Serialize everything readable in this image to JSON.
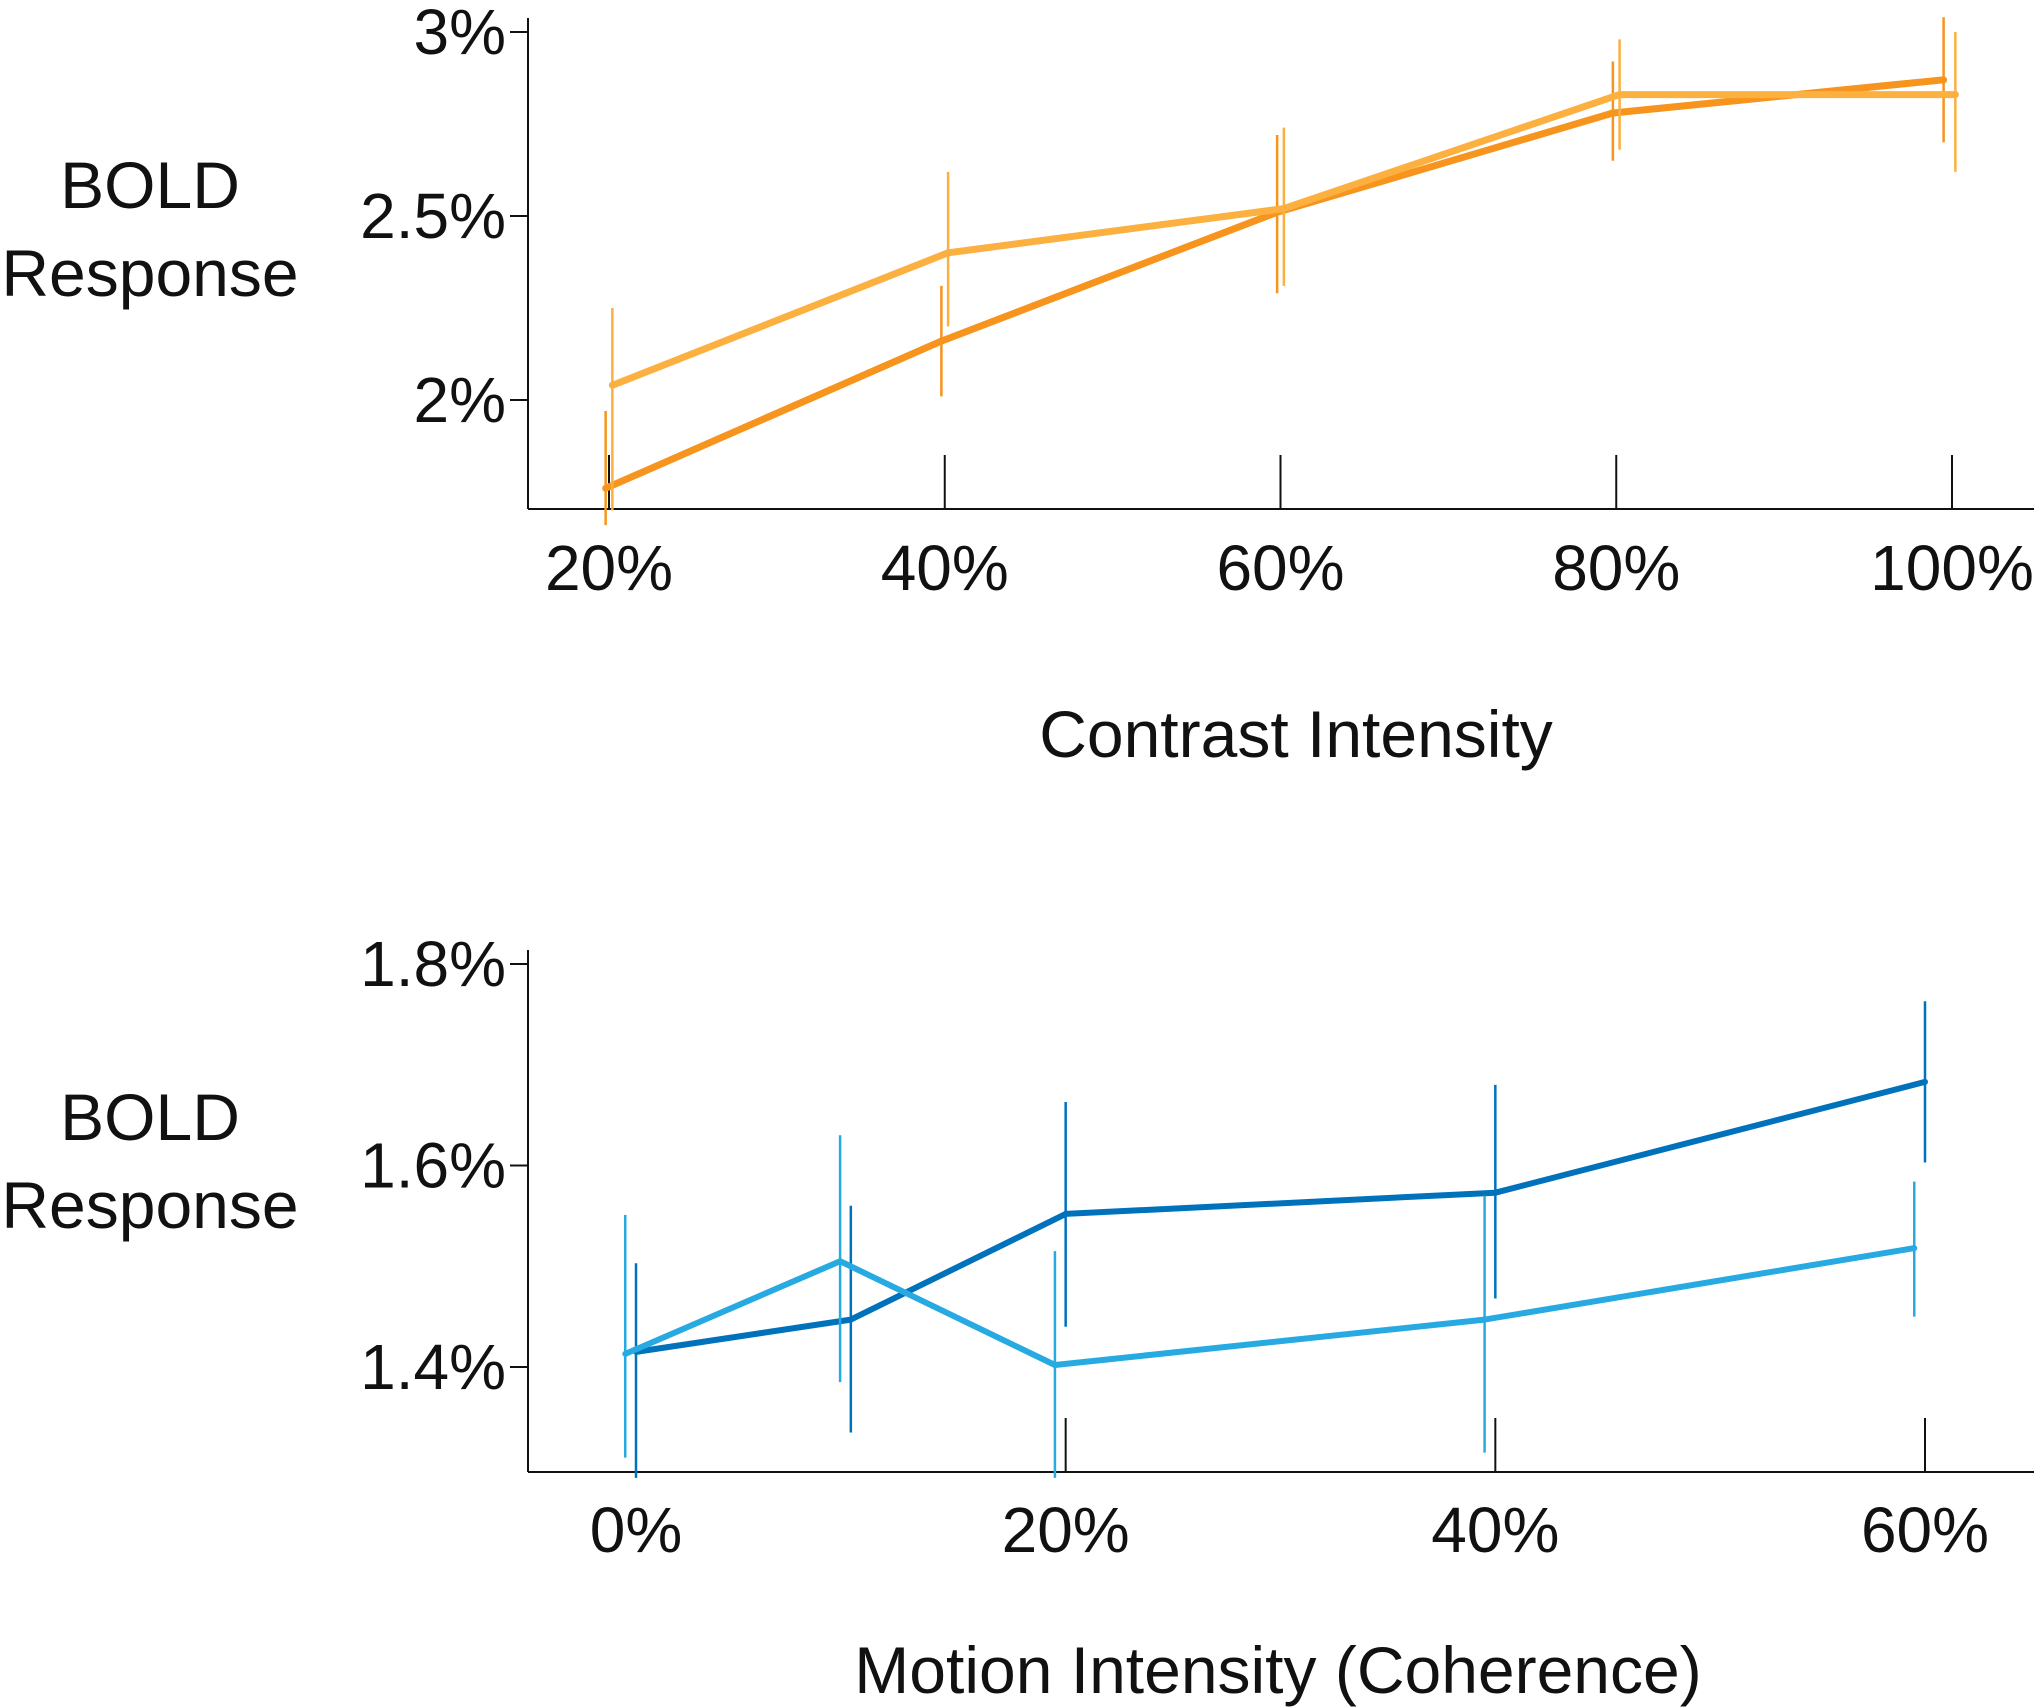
{
  "chart_data": [
    {
      "type": "line",
      "ylabel_lines": [
        "BOLD",
        "Response"
      ],
      "xlabel": "Contrast Intensity",
      "x": [
        20,
        40,
        60,
        80,
        100
      ],
      "x_tick_labels": [
        "20%",
        "40%",
        "60%",
        "80%",
        "100%"
      ],
      "y_ticks": [
        2,
        2.5,
        3
      ],
      "y_tick_labels": [
        "2%",
        "2.5%",
        "3%"
      ],
      "ylim": [
        1.7,
        3.0
      ],
      "grid": false,
      "series": [
        {
          "color": "#F7941D",
          "x": [
            19.8,
            39.8,
            59.8,
            79.8,
            99.5
          ],
          "values": [
            1.76,
            2.16,
            2.51,
            2.78,
            2.87
          ],
          "err_low": [
            1.66,
            2.01,
            2.29,
            2.65,
            2.7
          ],
          "err_high": [
            1.97,
            2.31,
            2.72,
            2.92,
            3.04
          ]
        },
        {
          "color": "#FBB040",
          "x": [
            20.2,
            40.2,
            60.2,
            80.2,
            100.2
          ],
          "values": [
            2.04,
            2.4,
            2.52,
            2.83,
            2.83
          ],
          "err_low": [
            1.7,
            2.2,
            2.31,
            2.68,
            2.62
          ],
          "err_high": [
            2.25,
            2.62,
            2.74,
            2.98,
            3.0
          ]
        }
      ]
    },
    {
      "type": "line",
      "ylabel_lines": [
        "BOLD",
        "Response"
      ],
      "xlabel": "Motion Intensity (Coherence)",
      "x": [
        0,
        20,
        40,
        60
      ],
      "x_tick_labels": [
        "0%",
        "20%",
        "40%",
        "60%"
      ],
      "y_ticks": [
        1.4,
        1.6,
        1.8
      ],
      "y_tick_labels": [
        "1.4%",
        "1.6%",
        "1.8%"
      ],
      "ylim": [
        1.3,
        1.8
      ],
      "grid": false,
      "series": [
        {
          "color": "#0072BC",
          "x": [
            0,
            10,
            20,
            40,
            60
          ],
          "values": [
            1.415,
            1.447,
            1.552,
            1.573,
            1.683
          ],
          "err_low": [
            1.29,
            1.335,
            1.44,
            1.468,
            1.603
          ],
          "err_high": [
            1.503,
            1.56,
            1.663,
            1.68,
            1.763
          ]
        },
        {
          "color": "#27AAE1",
          "x": [
            -0.5,
            9.5,
            19.5,
            39.5,
            59.5
          ],
          "values": [
            1.413,
            1.505,
            1.402,
            1.447,
            1.518
          ],
          "err_low": [
            1.31,
            1.385,
            1.29,
            1.315,
            1.45
          ],
          "err_high": [
            1.551,
            1.63,
            1.515,
            1.57,
            1.584
          ]
        }
      ]
    }
  ]
}
